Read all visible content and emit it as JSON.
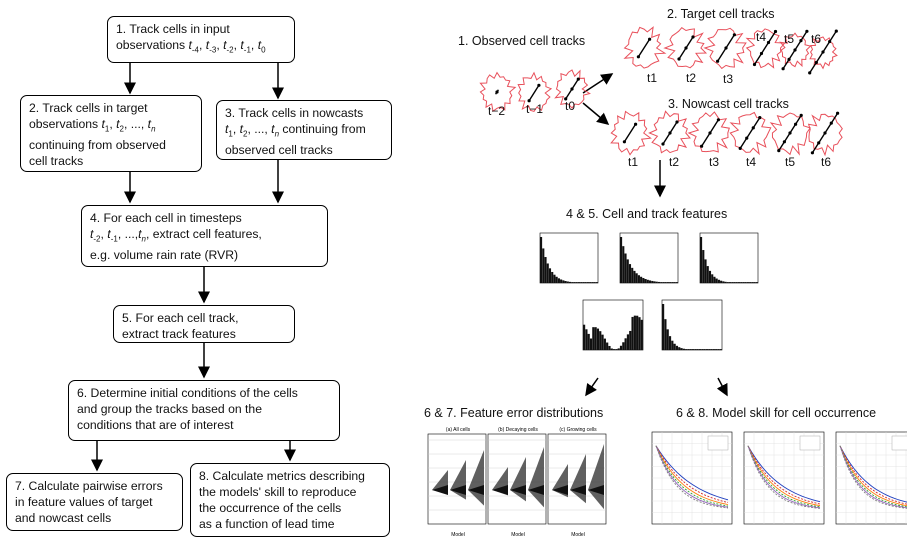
{
  "flow": {
    "step1": {
      "a": "1. Track cells in input",
      "b": "observations "
    },
    "step2": {
      "a": "2. Track cells in target",
      "b": "observations ",
      "c": "continuing from observed",
      "d": "cell tracks"
    },
    "step3": {
      "a": "3. Track cells in nowcasts",
      "c": "continuing from",
      "d": "observed cell tracks"
    },
    "step4": {
      "a": "4.  For each cell in timesteps",
      "b": "extract cell features,",
      "c": "e.g. volume rain rate (RVR)"
    },
    "step5": {
      "a": "5.  For each cell track,",
      "b": "extract track features"
    },
    "step6": {
      "a": "6.  Determine initial conditions of the cells",
      "b": "and group the tracks based on the",
      "c": "conditions that are of interest"
    },
    "step7": {
      "a": "7.  Calculate pairwise errors",
      "b": "in feature values of target",
      "c": "and nowcast cells"
    },
    "step8": {
      "a": "8.  Calculate metrics describing",
      "b": "the models' skill to reproduce",
      "c": "the occurrence of the cells",
      "d": "as a function of lead time"
    }
  },
  "illustration": {
    "observed_title": "1. Observed cell tracks",
    "target_title": "2. Target cell tracks",
    "nowcast_title": "3. Nowcast cell tracks",
    "features_title": "4 & 5. Cell and track features",
    "errors_title": "6 & 7. Feature error distributions",
    "skill_title": "6 & 8. Model skill for cell occurrence",
    "observed_times": [
      "t−2",
      "t−1",
      "t0"
    ],
    "target_times": [
      "t1",
      "t2",
      "t3",
      "t4",
      "t5",
      "t6"
    ],
    "nowcast_times": [
      "t1",
      "t2",
      "t3",
      "t4",
      "t5",
      "t6"
    ],
    "error_panels": [
      "(a) All cells",
      "(b) Decaying cells",
      "(c) Growing cells"
    ],
    "error_xlabel": "Model",
    "cell_color": "#e8505b"
  }
}
